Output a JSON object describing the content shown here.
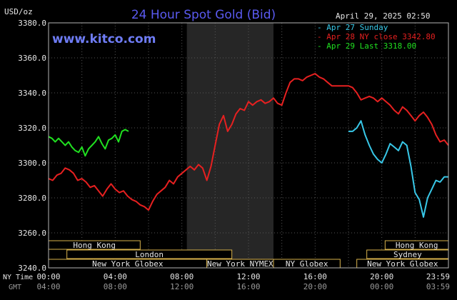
{
  "colors": {
    "background": "#000000",
    "frame": "#b4b4b4",
    "grid": "#555555",
    "shade": "#262626",
    "title": "#5a5af0",
    "watermark": "#6e7cf5",
    "text": "#e6e6e6",
    "sessionBox": "#d8b24c",
    "sessionFill": "#000000"
  },
  "chart_data": {
    "type": "line",
    "title": "24 Hour Spot Gold (Bid)",
    "watermark": "www.kitco.com",
    "yunit": "USD/oz",
    "timestamp": "April 29, 2025 02:50",
    "ylim": [
      3240,
      3380
    ],
    "xlim_hours": [
      0,
      24
    ],
    "yticks": [
      "3380.0",
      "3360.0",
      "3340.0",
      "3320.0",
      "3300.0",
      "3280.0",
      "3260.0",
      "3240.0"
    ],
    "ytick_values": [
      3380,
      3360,
      3340,
      3320,
      3300,
      3280,
      3260,
      3240
    ],
    "row_labels": {
      "ny": "NY Time",
      "gmt": "GMT"
    },
    "ny_ticks": [
      "00:00",
      "04:00",
      "08:00",
      "12:00",
      "16:00",
      "20:00",
      "23:59"
    ],
    "gmt_ticks": [
      "04:00",
      "08:00",
      "12:00",
      "16:00",
      "20:00",
      "00:00",
      "03:59"
    ],
    "tick_hours": [
      0,
      4,
      8,
      12,
      16,
      20,
      23.98
    ],
    "grid": true,
    "shaded_hours": [
      8.3,
      13.5
    ],
    "legend": [
      {
        "dash": "-",
        "text": "Apr 27 Sunday",
        "color": "#38c8e8"
      },
      {
        "dash": "-",
        "text": "Apr 28 NY close 3342.80",
        "color": "#e62020"
      },
      {
        "dash": "-",
        "text": "Apr 29 Last 3318.00",
        "color": "#20e020"
      }
    ],
    "sessions": [
      {
        "label": "Hong Kong",
        "start": 0,
        "end": 5.5,
        "row": 0
      },
      {
        "label": "London",
        "start": 1.1,
        "end": 11,
        "row": 1
      },
      {
        "label": "New York Globex",
        "start": 0,
        "end": 9.5,
        "row": 2
      },
      {
        "label": "New York NYMEX",
        "start": 9.5,
        "end": 13.5,
        "row": 2
      },
      {
        "label": "NY Globex",
        "start": 13.5,
        "end": 17.5,
        "row": 2
      },
      {
        "label": "Hong Kong",
        "start": 20.2,
        "end": 24,
        "row": 0
      },
      {
        "label": "Sydney",
        "start": 19.1,
        "end": 24,
        "row": 1
      },
      {
        "label": "New York Globex",
        "start": 18.5,
        "end": 24,
        "row": 2
      }
    ],
    "series": [
      {
        "name": "Apr 28 NY close 3342.80",
        "color": "#e62020",
        "x": [
          0,
          0.25,
          0.5,
          0.75,
          1,
          1.25,
          1.5,
          1.75,
          2,
          2.25,
          2.5,
          2.75,
          3,
          3.25,
          3.5,
          3.75,
          4,
          4.25,
          4.5,
          4.75,
          5,
          5.25,
          5.5,
          5.75,
          6,
          6.25,
          6.5,
          6.75,
          7,
          7.25,
          7.5,
          7.75,
          8,
          8.25,
          8.5,
          8.75,
          9,
          9.25,
          9.5,
          9.75,
          10,
          10.25,
          10.5,
          10.75,
          11,
          11.25,
          11.5,
          11.75,
          12,
          12.25,
          12.5,
          12.75,
          13,
          13.25,
          13.5,
          13.75,
          14,
          14.25,
          14.5,
          14.75,
          15,
          15.25,
          15.5,
          15.75,
          16,
          16.25,
          16.5,
          16.75,
          17,
          17.25,
          17.5,
          17.75,
          18,
          18.25,
          18.5,
          18.75,
          19,
          19.25,
          19.5,
          19.75,
          20,
          20.25,
          20.5,
          20.75,
          21,
          21.25,
          21.5,
          21.75,
          22,
          22.25,
          22.5,
          22.75,
          23,
          23.25,
          23.5,
          23.75,
          24
        ],
        "y": [
          3291,
          3290,
          3293,
          3294,
          3297,
          3296,
          3294,
          3290,
          3291,
          3289,
          3286,
          3287,
          3284,
          3281,
          3285,
          3288,
          3285,
          3283,
          3284,
          3281,
          3279,
          3278,
          3276,
          3275,
          3273,
          3278,
          3282,
          3284,
          3286,
          3290,
          3288,
          3292,
          3294,
          3296,
          3298,
          3296,
          3299,
          3297,
          3290,
          3298,
          3310,
          3322,
          3327,
          3318,
          3322,
          3328,
          3331,
          3330,
          3335,
          3333,
          3335,
          3336,
          3334,
          3335,
          3337,
          3334,
          3333,
          3340,
          3346,
          3348,
          3348,
          3347,
          3349,
          3350,
          3351,
          3349,
          3348,
          3346,
          3344,
          3344,
          3344,
          3344,
          3344,
          3343,
          3340,
          3336,
          3337,
          3338,
          3337,
          3335,
          3337,
          3335,
          3333,
          3330,
          3328,
          3332,
          3330,
          3327,
          3324,
          3327,
          3329,
          3326,
          3322,
          3316,
          3312,
          3313,
          3310
        ],
        "start": 0,
        "end": 24
      },
      {
        "name": "Apr 27 Sunday",
        "color": "#38c8e8",
        "x": [
          18,
          18.25,
          18.5,
          18.75,
          19,
          19.25,
          19.5,
          19.75,
          20,
          20.25,
          20.5,
          20.75,
          21,
          21.25,
          21.5,
          21.75,
          22,
          22.25,
          22.5,
          22.75,
          23,
          23.25,
          23.5,
          23.75,
          24
        ],
        "y": [
          3318,
          3318,
          3320,
          3324,
          3316,
          3310,
          3305,
          3302,
          3300,
          3305,
          3311,
          3309,
          3307,
          3312,
          3310,
          3298,
          3283,
          3279,
          3269,
          3280,
          3285,
          3290,
          3289,
          3292,
          3292
        ],
        "start": 18,
        "end": 24
      },
      {
        "name": "Apr 29 Last 3318.00",
        "color": "#20e020",
        "x": [
          0,
          0.2,
          0.4,
          0.6,
          0.8,
          1,
          1.2,
          1.4,
          1.6,
          1.8,
          2,
          2.2,
          2.4,
          2.6,
          2.8,
          3,
          3.2,
          3.4,
          3.6,
          3.8,
          4,
          4.2,
          4.4,
          4.6,
          4.8
        ],
        "y": [
          3315,
          3314,
          3312,
          3314,
          3312,
          3310,
          3312,
          3309,
          3307,
          3306,
          3309,
          3304,
          3308,
          3310,
          3312,
          3315,
          3311,
          3308,
          3313,
          3314,
          3316,
          3312,
          3318,
          3319,
          3318
        ],
        "start": 0,
        "end": 4.8
      }
    ]
  }
}
